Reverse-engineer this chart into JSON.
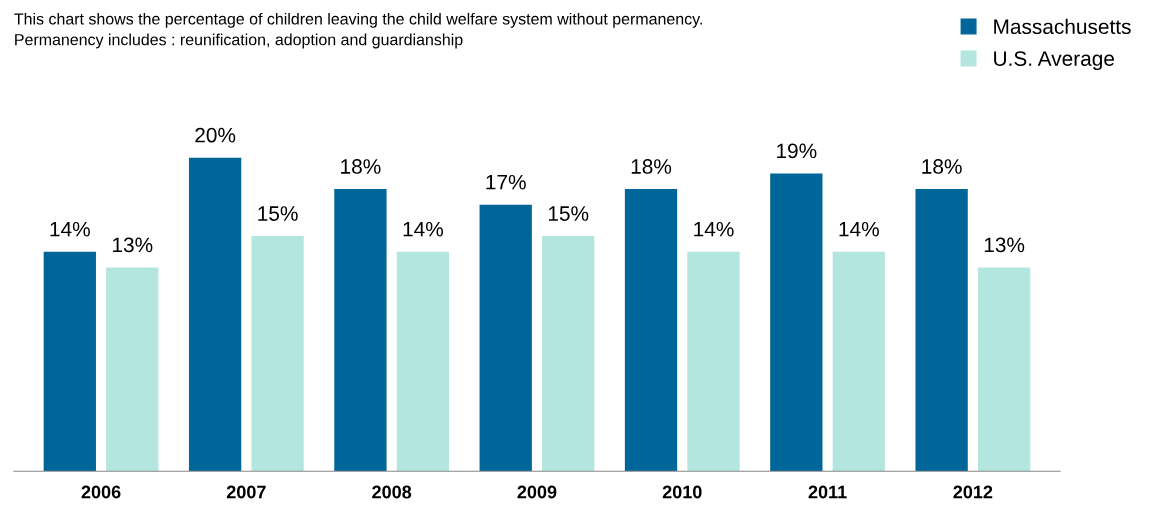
{
  "chart_data": {
    "type": "bar",
    "title": "This chart shows the percentage of children leaving the child welfare system without permanency.\nPermanency includes : reunification, adoption and guardianship",
    "categories": [
      "2006",
      "2007",
      "2008",
      "2009",
      "2010",
      "2011",
      "2012"
    ],
    "series": [
      {
        "name": "Massachusetts",
        "color": "#006699",
        "values": [
          14,
          20,
          18,
          17,
          18,
          19,
          18
        ],
        "value_labels": [
          "14%",
          "20%",
          "18%",
          "17%",
          "18%",
          "19%",
          "18%"
        ]
      },
      {
        "name": "U.S. Average",
        "color": "#b3e6de",
        "values": [
          13,
          15,
          14,
          15,
          14,
          14,
          13
        ],
        "value_labels": [
          "13%",
          "15%",
          "14%",
          "15%",
          "14%",
          "14%",
          "13%"
        ]
      }
    ],
    "legend": "top right",
    "grid": false
  }
}
